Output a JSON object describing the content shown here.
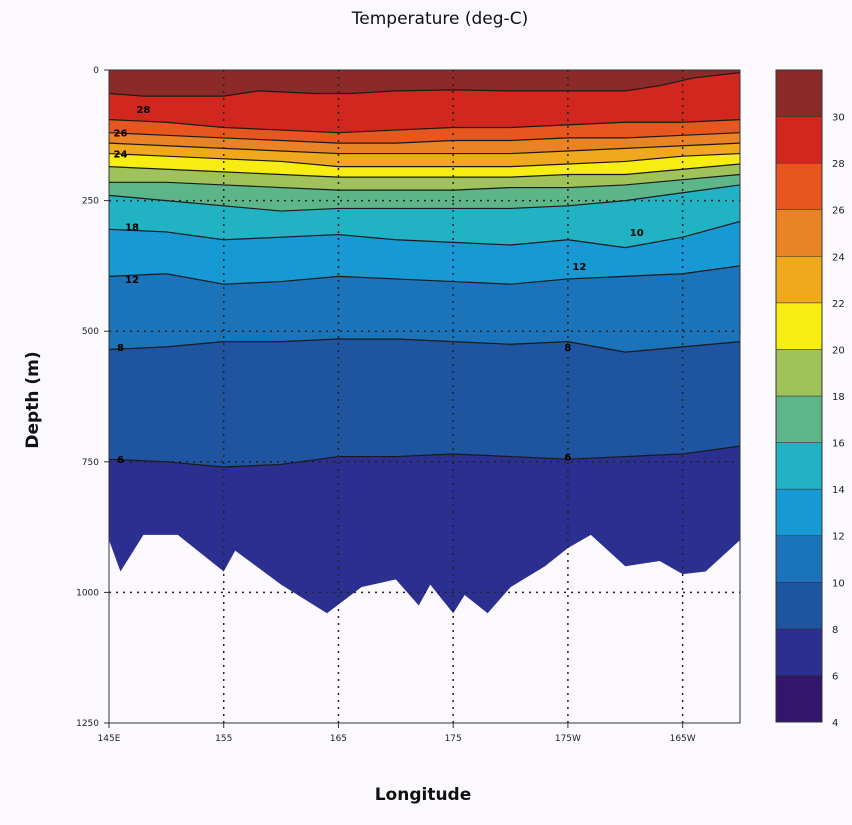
{
  "chart_data": {
    "type": "heatmap",
    "subtype": "filled-contour depth section",
    "title": "Temperature (deg-C)",
    "xlabel": "Longitude",
    "ylabel": "Depth (m)",
    "x_ticks": [
      "145E",
      "155",
      "165",
      "175",
      "175W",
      "165W"
    ],
    "x_tick_positions_deg_east": [
      145,
      155,
      165,
      175,
      185,
      195
    ],
    "xlim_deg_east": [
      145,
      200
    ],
    "y_ticks": [
      "0",
      "250",
      "500",
      "750",
      "1000",
      "1250"
    ],
    "y_tick_values": [
      0,
      250,
      500,
      750,
      1000,
      1250
    ],
    "ylim": [
      0,
      1250
    ],
    "y_inverted": true,
    "grid": "dotted",
    "colorbar_ticks": [
      "4",
      "6",
      "8",
      "10",
      "12",
      "14",
      "16",
      "18",
      "20",
      "22",
      "24",
      "26",
      "28",
      "30"
    ],
    "contour_levels": [
      4,
      6,
      8,
      10,
      12,
      14,
      16,
      18,
      20,
      22,
      24,
      26,
      28,
      30
    ],
    "level_colors": [
      "#33166b",
      "#2b2f8f",
      "#1f54a0",
      "#1b74b9",
      "#1799d4",
      "#21b2c3",
      "#5cb68a",
      "#9fc35a",
      "#f7ed12",
      "#f0a91c",
      "#e98326",
      "#e8561f",
      "#d1271e",
      "#8b2a28"
    ],
    "contours": [
      {
        "level": 28,
        "x": [
          145,
          148,
          155,
          158,
          163,
          166,
          170,
          175,
          180,
          185,
          190,
          193,
          196,
          200
        ],
        "depth": [
          45,
          50,
          50,
          40,
          45,
          45,
          40,
          38,
          40,
          40,
          40,
          30,
          15,
          5
        ]
      },
      {
        "level": 26,
        "x": [
          145,
          150,
          155,
          160,
          165,
          170,
          175,
          180,
          185,
          190,
          195,
          200
        ],
        "depth": [
          95,
          100,
          110,
          115,
          120,
          115,
          110,
          110,
          105,
          100,
          100,
          95
        ]
      },
      {
        "level": 24,
        "x": [
          145,
          150,
          155,
          160,
          165,
          170,
          175,
          180,
          185,
          190,
          195,
          200
        ],
        "depth": [
          120,
          125,
          130,
          135,
          140,
          140,
          135,
          135,
          130,
          130,
          125,
          120
        ]
      },
      {
        "level": 22,
        "x": [
          145,
          150,
          155,
          160,
          165,
          170,
          175,
          180,
          185,
          190,
          195,
          200
        ],
        "depth": [
          140,
          145,
          150,
          155,
          160,
          160,
          160,
          160,
          155,
          150,
          145,
          140
        ]
      },
      {
        "level": 20,
        "x": [
          145,
          150,
          155,
          160,
          165,
          170,
          175,
          180,
          185,
          190,
          195,
          200
        ],
        "depth": [
          160,
          165,
          170,
          175,
          185,
          185,
          185,
          185,
          180,
          175,
          165,
          160
        ]
      },
      {
        "level": 18,
        "x": [
          145,
          150,
          155,
          160,
          165,
          170,
          175,
          180,
          185,
          190,
          195,
          200
        ],
        "depth": [
          185,
          190,
          195,
          200,
          205,
          205,
          205,
          205,
          200,
          200,
          190,
          180
        ]
      },
      {
        "level": 16,
        "x": [
          145,
          150,
          155,
          160,
          165,
          170,
          175,
          180,
          185,
          190,
          195,
          200
        ],
        "depth": [
          215,
          215,
          220,
          225,
          230,
          230,
          230,
          225,
          225,
          220,
          210,
          200
        ]
      },
      {
        "level": 14,
        "x": [
          145,
          150,
          155,
          160,
          165,
          170,
          175,
          180,
          185,
          190,
          195,
          200
        ],
        "depth": [
          240,
          250,
          260,
          270,
          265,
          265,
          265,
          265,
          260,
          250,
          235,
          220
        ]
      },
      {
        "level": 12,
        "x": [
          145,
          150,
          155,
          160,
          165,
          170,
          175,
          180,
          185,
          190,
          195,
          200
        ],
        "depth": [
          305,
          310,
          325,
          320,
          315,
          325,
          330,
          335,
          325,
          340,
          320,
          290
        ]
      },
      {
        "level": 10,
        "x": [
          145,
          150,
          155,
          160,
          165,
          170,
          175,
          180,
          185,
          190,
          195,
          200
        ],
        "depth": [
          395,
          390,
          410,
          405,
          395,
          400,
          405,
          410,
          400,
          395,
          390,
          375
        ]
      },
      {
        "level": 8,
        "x": [
          145,
          150,
          155,
          160,
          165,
          170,
          175,
          180,
          185,
          190,
          195,
          200
        ],
        "depth": [
          535,
          530,
          520,
          520,
          515,
          515,
          520,
          525,
          520,
          540,
          530,
          520
        ]
      },
      {
        "level": 6,
        "x": [
          145,
          150,
          155,
          160,
          165,
          170,
          175,
          180,
          185,
          190,
          195,
          200
        ],
        "depth": [
          745,
          750,
          760,
          755,
          740,
          740,
          735,
          740,
          745,
          740,
          735,
          720
        ]
      }
    ],
    "bottom_depth": {
      "x": [
        145,
        146,
        148,
        151,
        155,
        156,
        160,
        164,
        167,
        170,
        172,
        173,
        175,
        176,
        178,
        180,
        183,
        185,
        187,
        190,
        193,
        195,
        197,
        200
      ],
      "depth": [
        900,
        960,
        890,
        890,
        960,
        920,
        985,
        1040,
        990,
        975,
        1025,
        985,
        1040,
        1005,
        1040,
        990,
        950,
        915,
        890,
        950,
        940,
        965,
        960,
        900
      ]
    },
    "contour_labels": [
      {
        "text": "26",
        "x": 146,
        "depth": 120
      },
      {
        "text": "24",
        "x": 146,
        "depth": 160
      },
      {
        "text": "28",
        "x": 148,
        "depth": 75
      },
      {
        "text": "18",
        "x": 147,
        "depth": 300
      },
      {
        "text": "12",
        "x": 147,
        "depth": 400
      },
      {
        "text": "10",
        "x": 191,
        "depth": 310
      },
      {
        "text": "8",
        "x": 146,
        "depth": 530
      },
      {
        "text": "6",
        "x": 146,
        "depth": 745
      },
      {
        "text": "8",
        "x": 185,
        "depth": 530
      },
      {
        "text": "6",
        "x": 185,
        "depth": 740
      },
      {
        "text": "12",
        "x": 186,
        "depth": 375
      }
    ]
  }
}
